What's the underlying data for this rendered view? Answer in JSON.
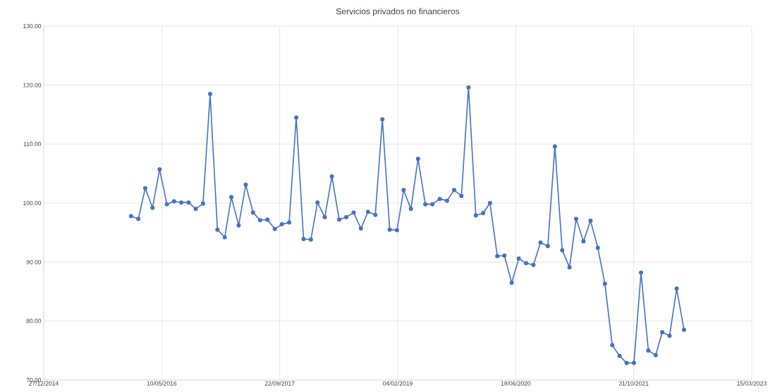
{
  "chart_data": {
    "type": "line",
    "title": "Servicios privados no financieros",
    "x": [
      "2016-01-01",
      "2016-02-01",
      "2016-03-01",
      "2016-04-01",
      "2016-05-01",
      "2016-06-01",
      "2016-07-01",
      "2016-08-01",
      "2016-09-01",
      "2016-10-01",
      "2016-11-01",
      "2016-12-01",
      "2017-01-01",
      "2017-02-01",
      "2017-03-01",
      "2017-04-01",
      "2017-05-01",
      "2017-06-01",
      "2017-07-01",
      "2017-08-01",
      "2017-09-01",
      "2017-10-01",
      "2017-11-01",
      "2017-12-01",
      "2018-01-01",
      "2018-02-01",
      "2018-03-01",
      "2018-04-01",
      "2018-05-01",
      "2018-06-01",
      "2018-07-01",
      "2018-08-01",
      "2018-09-01",
      "2018-10-01",
      "2018-11-01",
      "2018-12-01",
      "2019-01-01",
      "2019-02-01",
      "2019-03-01",
      "2019-04-01",
      "2019-05-01",
      "2019-06-01",
      "2019-07-01",
      "2019-08-01",
      "2019-09-01",
      "2019-10-01",
      "2019-11-01",
      "2019-12-01",
      "2020-01-01",
      "2020-02-01",
      "2020-03-01",
      "2020-04-01",
      "2020-05-01",
      "2020-06-01",
      "2020-07-01",
      "2020-08-01",
      "2020-09-01",
      "2020-10-01",
      "2020-11-01",
      "2020-12-01",
      "2021-01-01",
      "2021-02-01",
      "2021-03-01",
      "2021-04-01",
      "2021-05-01",
      "2021-06-01",
      "2021-07-01",
      "2021-08-01",
      "2021-09-01",
      "2021-10-01",
      "2021-11-01",
      "2021-12-01",
      "2022-01-01",
      "2022-02-01",
      "2022-03-01",
      "2022-04-01",
      "2022-05-01",
      "2022-06-01"
    ],
    "series": [
      {
        "color": "#4472c4",
        "values": [
          97.8,
          97.3,
          102.5,
          99.2,
          105.7,
          99.8,
          100.3,
          100.1,
          100.1,
          99.0,
          99.9,
          118.5,
          95.5,
          94.2,
          101.0,
          96.2,
          103.1,
          98.4,
          97.1,
          97.2,
          95.6,
          96.4,
          96.7,
          114.5,
          93.9,
          93.8,
          100.1,
          97.6,
          104.5,
          97.2,
          97.6,
          98.4,
          95.7,
          98.5,
          98.0,
          114.2,
          95.5,
          95.4,
          102.2,
          99.0,
          107.5,
          99.8,
          99.8,
          100.7,
          100.4,
          102.2,
          101.2,
          119.6,
          97.9,
          98.3,
          100.0,
          91.0,
          91.1,
          86.5,
          90.6,
          89.8,
          89.5,
          93.3,
          92.7,
          109.6,
          92.0,
          89.1,
          97.3,
          93.5,
          97.0,
          92.4,
          86.3,
          75.9,
          74.1,
          72.9,
          72.9,
          88.2,
          75.0,
          74.2,
          78.1,
          77.5,
          85.5,
          78.5
        ]
      }
    ],
    "xlim": [
      "2014-12-27",
      "2023-03-15"
    ],
    "xticks": [
      {
        "value": "2014-12-27",
        "label": "27/12/2014"
      },
      {
        "value": "2016-05-10",
        "label": "10/05/2016"
      },
      {
        "value": "2017-09-22",
        "label": "22/09/2017"
      },
      {
        "value": "2019-02-04",
        "label": "04/02/2019"
      },
      {
        "value": "2020-06-18",
        "label": "18/06/2020"
      },
      {
        "value": "2021-10-31",
        "label": "31/10/2021"
      },
      {
        "value": "2023-03-15",
        "label": "15/03/2023"
      }
    ],
    "ylim": [
      70,
      130
    ],
    "yticks": [
      {
        "value": 70,
        "label": "70.00"
      },
      {
        "value": 80,
        "label": "80.00"
      },
      {
        "value": 90,
        "label": "90.00"
      },
      {
        "value": 100,
        "label": "100.00"
      },
      {
        "value": 110,
        "label": "110.00"
      },
      {
        "value": 120,
        "label": "120.00"
      },
      {
        "value": 130,
        "label": "130.00"
      }
    ],
    "grid": true,
    "marker": "circle",
    "line_style": "solid"
  }
}
